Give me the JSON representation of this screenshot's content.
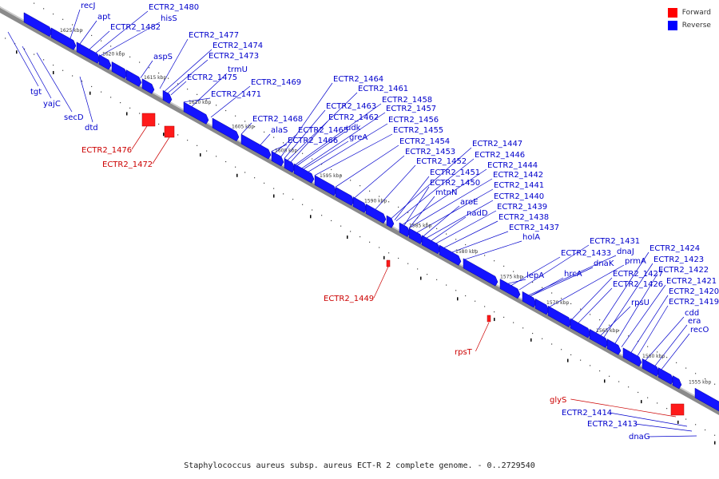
{
  "legend": {
    "forward_label": "Forward",
    "reverse_label": "Reverse",
    "forward_color": "#ff0000",
    "reverse_color": "#0000ff"
  },
  "caption": "Staphylococcus aureus subsp. aureus ECT-R 2 complete genome. - 0..2729540",
  "kbp_marks": [
    "1625 kbp",
    "1620 kbp",
    "1615 kbp",
    "1610 kbp",
    "1605 kbp",
    "1600 kbp",
    "1595 kbp",
    "1590 kbp",
    "1585 kbp",
    "1580 kbp",
    "1575 kbp",
    "1570 kbp",
    "1565 kbp",
    "1560 kbp",
    "1555 kbp"
  ],
  "forward_genes": [
    "ECTR2_1476",
    "ECTR2_1472",
    "ECTR2_1449",
    "rpsT",
    "glyS"
  ],
  "reverse_genes_above": [
    "recJ",
    "apt",
    "ECTR2_1480",
    "hisS",
    "ECTR2_1482",
    "aspS",
    "ECTR2_1477",
    "ECTR2_1474",
    "ECTR2_1473",
    "trmU",
    "ECTR2_1475",
    "ECTR2_1469",
    "ECTR2_1471",
    "ECTR2_1464",
    "ECTR2_1461",
    "ECTR2_1458",
    "ECTR2_1463",
    "ECTR2_1457",
    "ECTR2_1462",
    "ECTR2_1468",
    "udk",
    "ECTR2_1456",
    "alaS",
    "ECTR2_1465",
    "greA",
    "ECTR2_1455",
    "ECTR2_1466",
    "ECTR2_1454",
    "ECTR2_1447",
    "ECTR2_1453",
    "ECTR2_1446",
    "ECTR2_1452",
    "ECTR2_1444",
    "ECTR2_1451",
    "ECTR2_1442",
    "ECTR2_1450",
    "ECTR2_1441",
    "mtnN",
    "aroE",
    "ECTR2_1440",
    "nadD",
    "ECTR2_1439",
    "ECTR2_1438",
    "ECTR2_1437",
    "holA",
    "ECTR2_1431",
    "ECTR2_1433",
    "dnaJ",
    "ECTR2_1424",
    "dnaK",
    "prmA",
    "ECTR2_1423",
    "lepA",
    "hrcA",
    "ECTR2_1427",
    "ECTR2_1422",
    "ECTR2_1426",
    "ECTR2_1421",
    "rpsU",
    "ECTR2_1420",
    "ECTR2_1419",
    "cdd",
    "era",
    "recO"
  ],
  "reverse_genes_below": [
    "tgt",
    "yajC",
    "secD",
    "dtd",
    "ECTR2_1414",
    "ECTR2_1413",
    "dnaG"
  ]
}
